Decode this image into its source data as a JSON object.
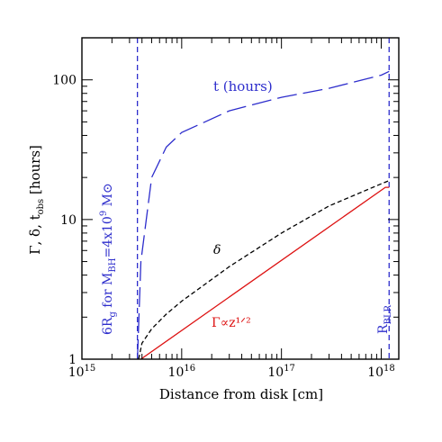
{
  "chart_data": {
    "type": "line",
    "xlabel": "Distance from disk [cm]",
    "ylabel": "Γ, δ, t_obs [hours]",
    "xscale": "log",
    "yscale": "log",
    "xlim": [
      1000000000000000.0,
      1.5e+18
    ],
    "ylim": [
      1,
      200
    ],
    "x_tick_labels": [
      {
        "base": "10",
        "exp": "15",
        "value": 1000000000000000.0
      },
      {
        "base": "10",
        "exp": "16",
        "value": 1e+16
      },
      {
        "base": "10",
        "exp": "17",
        "value": 1e+17
      },
      {
        "base": "10",
        "exp": "18",
        "value": 1e+18
      }
    ],
    "y_tick_labels": [
      {
        "label": "1",
        "value": 1
      },
      {
        "label": "10",
        "value": 10
      },
      {
        "label": "100",
        "value": 100
      }
    ],
    "series": [
      {
        "label": "t (hours)",
        "color": "#2d2dcc",
        "dash": "long-dash",
        "points": [
          [
            3600000000000000.0,
            1.0
          ],
          [
            3900000000000000.0,
            5.0
          ],
          [
            5000000000000000.0,
            20.0
          ],
          [
            7000000000000000.0,
            33.0
          ],
          [
            1e+16,
            42.0
          ],
          [
            3e+16,
            60.0
          ],
          [
            1e+17,
            75.0
          ],
          [
            3e+17,
            87.0
          ],
          [
            1e+18,
            108.0
          ],
          [
            1.2e+18,
            115.0
          ]
        ]
      },
      {
        "label": "δ",
        "color": "#000000",
        "dash": "short-dash",
        "points": [
          [
            3700000000000000.0,
            1.0
          ],
          [
            4000000000000000.0,
            1.3
          ],
          [
            5000000000000000.0,
            1.65
          ],
          [
            7000000000000000.0,
            2.1
          ],
          [
            1e+16,
            2.6
          ],
          [
            3e+16,
            4.6
          ],
          [
            1e+17,
            8.0
          ],
          [
            3e+17,
            12.5
          ],
          [
            1e+18,
            18.0
          ],
          [
            1.2e+18,
            19.0
          ]
        ]
      },
      {
        "label": "Γ∝z¹ᐟ²",
        "color": "#dd1111",
        "dash": "solid",
        "points": [
          [
            3900000000000000.0,
            1.0
          ],
          [
            1.1e+18,
            17.0
          ],
          [
            1.2e+18,
            17.0
          ]
        ]
      }
    ],
    "vertical_lines": [
      {
        "x": 3600000000000000.0,
        "label_main": "6R",
        "label_sub": "g",
        "label_rest": " for M",
        "label_sub2": "BH",
        "label_rest2": "=4x10",
        "label_sup": "9",
        "label_rest3": " M⊙",
        "color": "#2d2dcc"
      },
      {
        "x": 1.2e+18,
        "label_main": "R",
        "label_sub": "BLR",
        "color": "#2d2dcc"
      }
    ]
  }
}
